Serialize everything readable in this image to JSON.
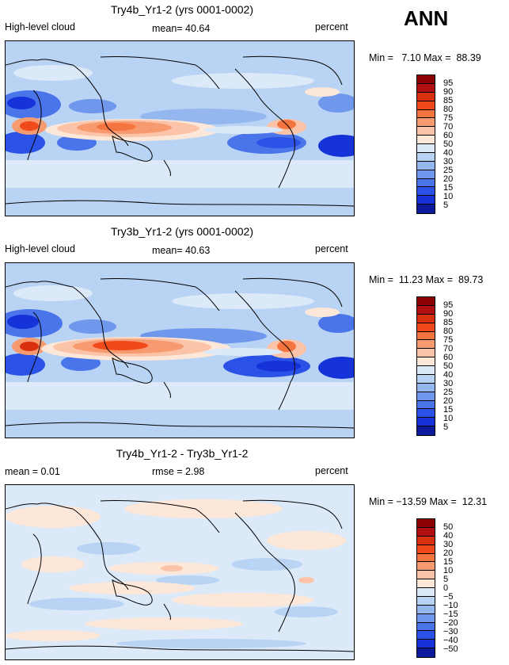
{
  "season": "ANN",
  "panels": [
    {
      "title": "Try4b_Yr1-2 (yrs 0001-0002)",
      "left_label": "High-level cloud",
      "center_label": "mean=  40.64",
      "right_label": "percent",
      "minmax": "Min =   7.10 Max =  88.39",
      "colorbar_labels": [
        "95",
        "90",
        "85",
        "80",
        "75",
        "70",
        "60",
        "50",
        "40",
        "30",
        "25",
        "20",
        "15",
        "10",
        "5"
      ],
      "colors": [
        "#8b0000",
        "#b01010",
        "#d93010",
        "#f04a1a",
        "#f57540",
        "#f89a70",
        "#fbc4a8",
        "#fde7d8",
        "#dce9f8",
        "#b9d3f4",
        "#95b7ef",
        "#6f97ec",
        "#4a74ea",
        "#2b52e6",
        "#1533d8",
        "#0d1a9c"
      ]
    },
    {
      "title": "Try3b_Yr1-2 (yrs 0001-0002)",
      "left_label": "High-level cloud",
      "center_label": "mean=  40.63",
      "right_label": "percent",
      "minmax": "Min =  11.23 Max =  89.73",
      "colorbar_labels": [
        "95",
        "90",
        "85",
        "80",
        "75",
        "70",
        "60",
        "50",
        "40",
        "30",
        "25",
        "20",
        "15",
        "10",
        "5"
      ],
      "colors": [
        "#8b0000",
        "#b01010",
        "#d93010",
        "#f04a1a",
        "#f57540",
        "#f89a70",
        "#fbc4a8",
        "#fde7d8",
        "#dce9f8",
        "#b9d3f4",
        "#95b7ef",
        "#6f97ec",
        "#4a74ea",
        "#2b52e6",
        "#1533d8",
        "#0d1a9c"
      ]
    },
    {
      "title": "Try4b_Yr1-2 - Try3b_Yr1-2",
      "left_label": "mean =    0.01",
      "center_label": "rmse =    2.98",
      "right_label": "percent",
      "minmax": "Min = −13.59 Max =  12.31",
      "colorbar_labels": [
        "50",
        "40",
        "30",
        "20",
        "15",
        "10",
        "5",
        "0",
        "−5",
        "−10",
        "−15",
        "−20",
        "−30",
        "−40",
        "−50"
      ],
      "colors": [
        "#8b0000",
        "#b01010",
        "#d93010",
        "#f04a1a",
        "#f57540",
        "#f89a70",
        "#fbc4a8",
        "#fde7d8",
        "#dce9f8",
        "#b9d3f4",
        "#95b7ef",
        "#6f97ec",
        "#4a74ea",
        "#2b52e6",
        "#1533d8",
        "#0d1a9c"
      ]
    }
  ]
}
